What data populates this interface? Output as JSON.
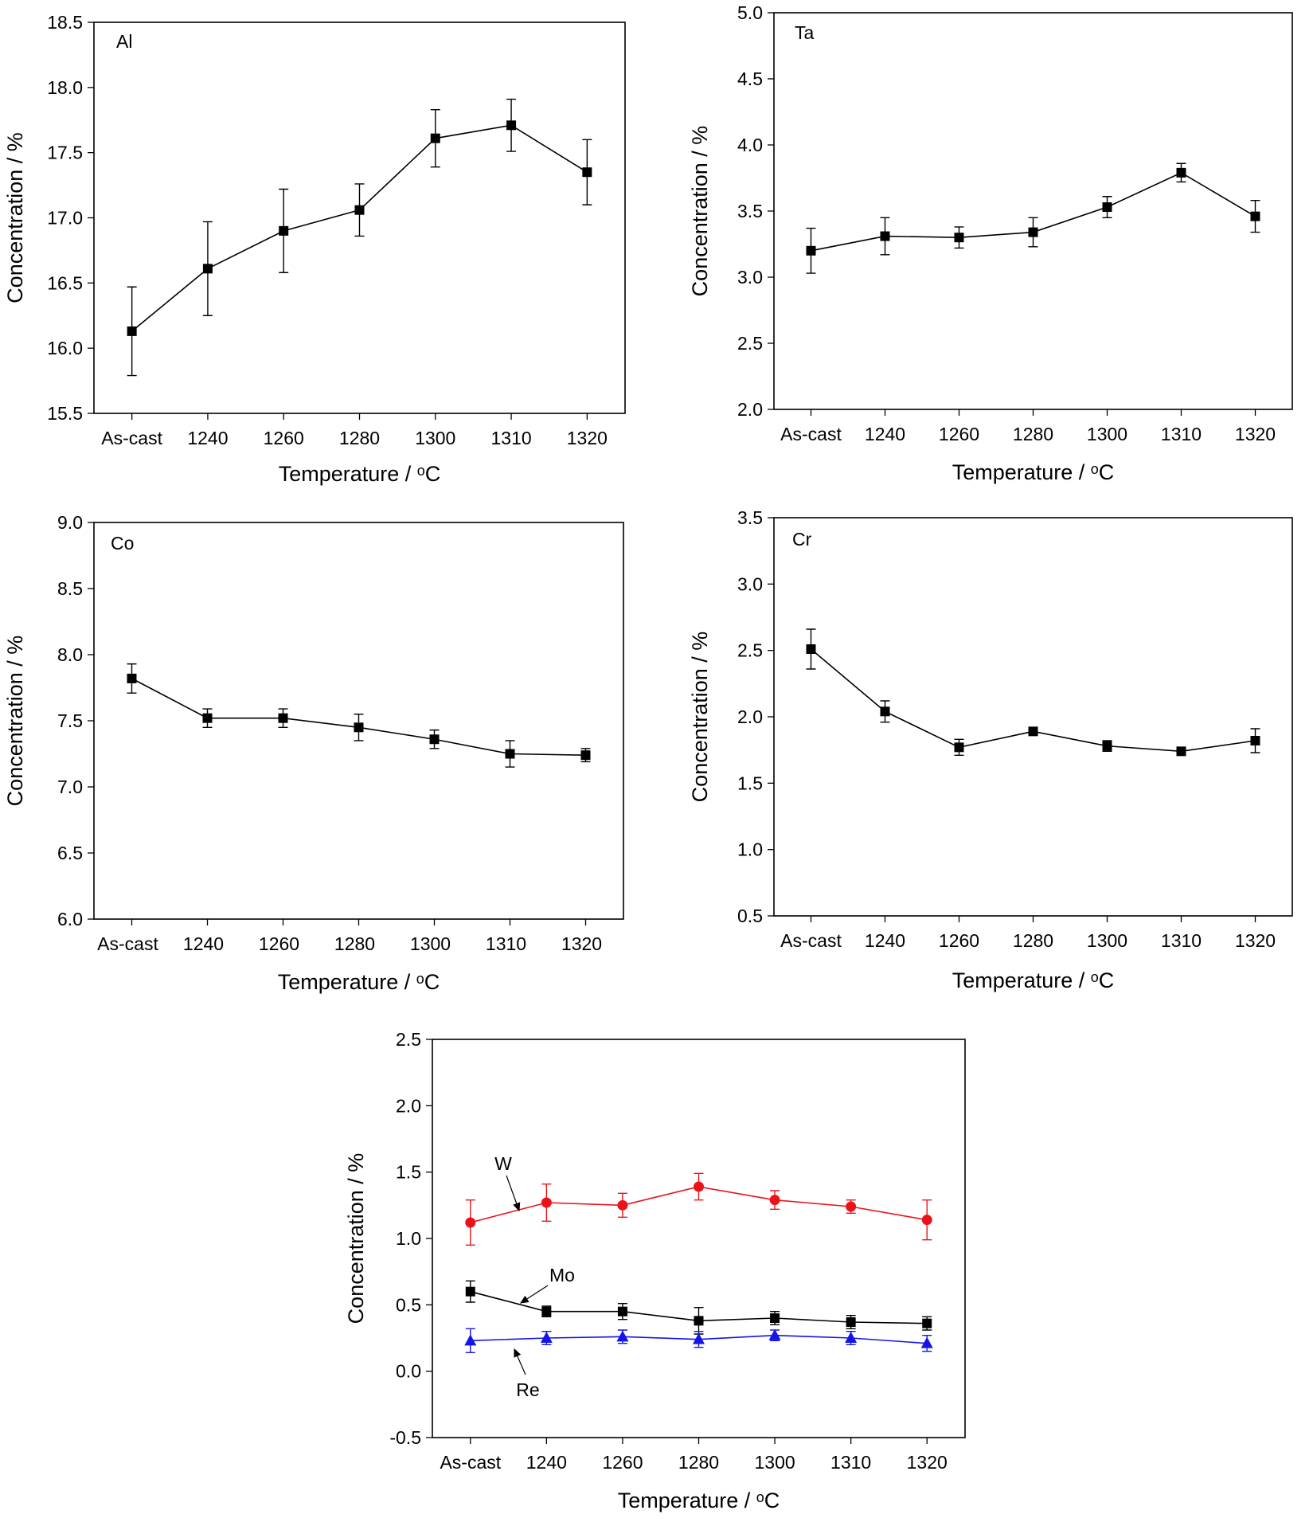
{
  "chart_data": [
    {
      "type": "line",
      "title": "Al",
      "xlabel": "Temperature / °C",
      "ylabel": "Concentration / %",
      "categories": [
        "As-cast",
        "1240",
        "1260",
        "1280",
        "1300",
        "1310",
        "1320"
      ],
      "ylim": [
        15.5,
        18.5
      ],
      "yticks": [
        15.5,
        16.0,
        16.5,
        17.0,
        17.5,
        18.0,
        18.5
      ],
      "yticks_text": [
        "15.5",
        "16.0",
        "16.5",
        "17.0",
        "17.5",
        "18.0",
        "18.5"
      ],
      "grid": false,
      "series": [
        {
          "values": [
            16.13,
            16.61,
            16.9,
            17.06,
            17.61,
            17.71,
            17.35
          ],
          "errors": [
            0.34,
            0.36,
            0.32,
            0.2,
            0.22,
            0.2,
            0.25
          ],
          "marker": "square",
          "color": "#000000"
        }
      ]
    },
    {
      "type": "line",
      "title": "Ta",
      "xlabel": "Temperature / °C",
      "ylabel": "Concentration / %",
      "categories": [
        "As-cast",
        "1240",
        "1260",
        "1280",
        "1300",
        "1310",
        "1320"
      ],
      "ylim": [
        2.0,
        5.0
      ],
      "yticks": [
        2.0,
        2.5,
        3.0,
        3.5,
        4.0,
        4.5,
        5.0
      ],
      "yticks_text": [
        "2.0",
        "2.5",
        "3.0",
        "3.5",
        "4.0",
        "4.5",
        "5.0"
      ],
      "grid": false,
      "series": [
        {
          "values": [
            3.2,
            3.31,
            3.3,
            3.34,
            3.53,
            3.79,
            3.46
          ],
          "errors": [
            0.17,
            0.14,
            0.08,
            0.11,
            0.08,
            0.07,
            0.12
          ],
          "marker": "square",
          "color": "#000000"
        }
      ]
    },
    {
      "type": "line",
      "title": "Co",
      "xlabel": "Temperature / °C",
      "ylabel": "Concentration / %",
      "categories": [
        "As-cast",
        "1240",
        "1260",
        "1280",
        "1300",
        "1310",
        "1320"
      ],
      "ylim": [
        6.0,
        9.0
      ],
      "yticks": [
        6.0,
        6.5,
        7.0,
        7.5,
        8.0,
        8.5,
        9.0
      ],
      "yticks_text": [
        "6.0",
        "6.5",
        "7.0",
        "7.5",
        "8.0",
        "8.5",
        "9.0"
      ],
      "grid": false,
      "series": [
        {
          "values": [
            7.82,
            7.52,
            7.52,
            7.45,
            7.36,
            7.25,
            7.24
          ],
          "errors": [
            0.11,
            0.07,
            0.07,
            0.1,
            0.07,
            0.1,
            0.05
          ],
          "marker": "square",
          "color": "#000000"
        }
      ]
    },
    {
      "type": "line",
      "title": "Cr",
      "xlabel": "Temperature / °C",
      "ylabel": "Concentration / %",
      "categories": [
        "As-cast",
        "1240",
        "1260",
        "1280",
        "1300",
        "1310",
        "1320"
      ],
      "ylim": [
        0.5,
        3.5
      ],
      "yticks": [
        0.5,
        1.0,
        1.5,
        2.0,
        2.5,
        3.0,
        3.5
      ],
      "yticks_text": [
        "0.5",
        "1.0",
        "1.5",
        "2.0",
        "2.5",
        "3.0",
        "3.5"
      ],
      "grid": false,
      "series": [
        {
          "values": [
            2.51,
            2.04,
            1.77,
            1.89,
            1.78,
            1.74,
            1.82
          ],
          "errors": [
            0.15,
            0.08,
            0.06,
            0.03,
            0.04,
            0.02,
            0.09
          ],
          "marker": "square",
          "color": "#000000"
        }
      ]
    },
    {
      "type": "line",
      "xlabel": "Temperature / °C",
      "ylabel": "Concentration / %",
      "categories": [
        "As-cast",
        "1240",
        "1260",
        "1280",
        "1300",
        "1310",
        "1320"
      ],
      "ylim": [
        -0.5,
        2.5
      ],
      "yticks": [
        -0.5,
        0.0,
        0.5,
        1.0,
        1.5,
        2.0,
        2.5
      ],
      "yticks_text": [
        "-0.5",
        "0.0",
        "0.5",
        "1.0",
        "1.5",
        "2.0",
        "2.5"
      ],
      "grid": false,
      "annotations": [
        "W",
        "Mo",
        "Re"
      ],
      "series": [
        {
          "name": "W",
          "values": [
            1.12,
            1.27,
            1.25,
            1.39,
            1.29,
            1.24,
            1.14
          ],
          "errors": [
            0.17,
            0.14,
            0.09,
            0.1,
            0.07,
            0.05,
            0.15
          ],
          "marker": "circle",
          "color": "#e8141a"
        },
        {
          "name": "Mo",
          "values": [
            0.6,
            0.45,
            0.45,
            0.38,
            0.4,
            0.37,
            0.36
          ],
          "errors": [
            0.08,
            0.04,
            0.06,
            0.1,
            0.05,
            0.05,
            0.05
          ],
          "marker": "square",
          "color": "#000000"
        },
        {
          "name": "Re",
          "values": [
            0.23,
            0.25,
            0.26,
            0.24,
            0.27,
            0.25,
            0.21
          ],
          "errors": [
            0.09,
            0.05,
            0.05,
            0.06,
            0.04,
            0.05,
            0.06
          ],
          "marker": "triangle",
          "color": "#1414e6"
        }
      ]
    }
  ]
}
